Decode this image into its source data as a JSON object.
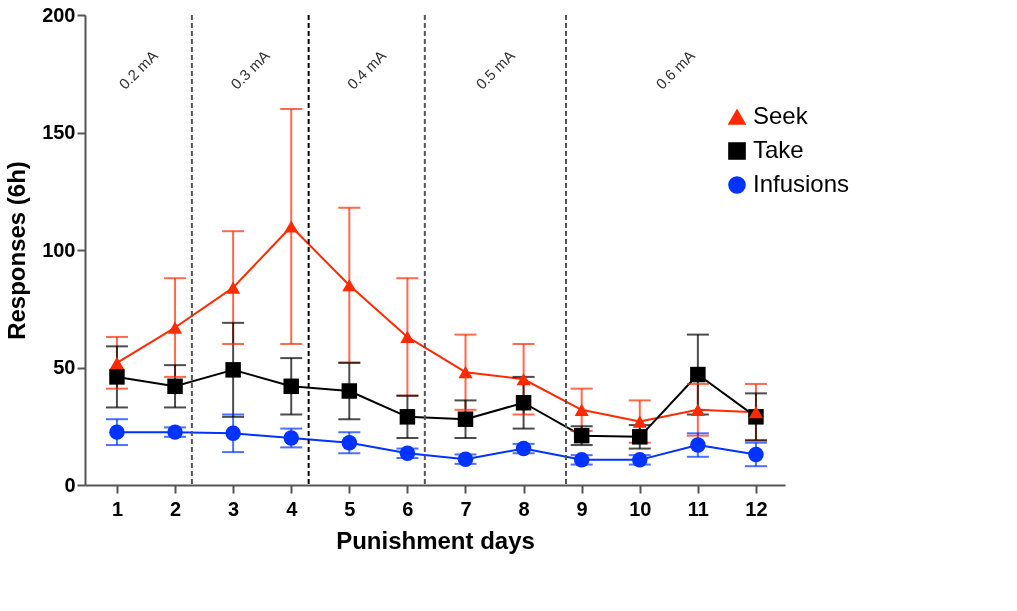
{
  "chart_data": {
    "type": "line",
    "xlabel": "Punishment days",
    "ylabel": "Responses (6h)",
    "x": [
      1,
      2,
      3,
      4,
      5,
      6,
      7,
      8,
      9,
      10,
      11,
      12
    ],
    "xlim": [
      0.45,
      12.5
    ],
    "xticks": [
      1,
      2,
      3,
      4,
      5,
      6,
      7,
      8,
      9,
      10,
      11,
      12
    ],
    "ylim": [
      0,
      200
    ],
    "yticks": [
      0,
      50,
      100,
      150,
      200
    ],
    "series": [
      {
        "name": "Seek",
        "color": "#ff2a00",
        "marker": "triangle",
        "values": [
          52,
          67,
          84,
          110,
          85,
          63,
          48,
          45,
          32,
          27,
          32,
          31
        ],
        "errors": [
          11,
          21,
          24,
          50,
          33,
          25,
          16,
          15,
          9,
          9,
          11,
          12
        ]
      },
      {
        "name": "Take",
        "color": "#000000",
        "marker": "square",
        "values": [
          46,
          42,
          49,
          42,
          40,
          29,
          28,
          35,
          21,
          20.5,
          47,
          29
        ],
        "errors": [
          13,
          9,
          20,
          12,
          12,
          9,
          8,
          11,
          4,
          5,
          17,
          10
        ]
      },
      {
        "name": "Infusions",
        "color": "#0033ff",
        "marker": "circle",
        "values": [
          22.5,
          22.5,
          22,
          20,
          18,
          13.5,
          11,
          15.5,
          10.7,
          10.7,
          17,
          13
        ],
        "errors": [
          5.5,
          2,
          8,
          4,
          4.5,
          2,
          2,
          2,
          2,
          2,
          5,
          5
        ]
      }
    ],
    "ref_lines": [
      {
        "axis": "x",
        "value": 2.29,
        "color": "#555555",
        "line_style": "dashed"
      },
      {
        "axis": "x",
        "value": 4.3,
        "color": "#000000",
        "line_style": "dashed"
      },
      {
        "axis": "x",
        "value": 6.3,
        "color": "#555555",
        "line_style": "dashed"
      },
      {
        "axis": "x",
        "value": 8.73,
        "color": "#555555",
        "line_style": "dashed"
      }
    ],
    "annotations": [
      "0.2 mA",
      "0.3 mA",
      "0.4 mA",
      "0.5 mA",
      "0.6 mA"
    ],
    "grid": false,
    "legend": "top right",
    "line_style": "solid"
  }
}
